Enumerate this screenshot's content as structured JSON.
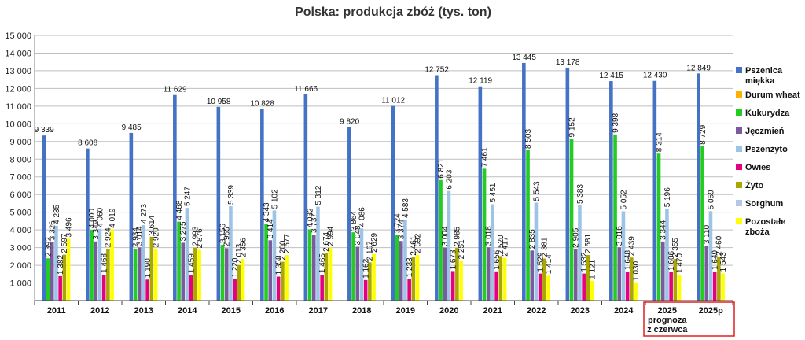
{
  "chart_data": {
    "type": "bar",
    "title": "Polska: produkcja zbóż (tys. ton)",
    "ylim": [
      0,
      15000
    ],
    "yticks": [
      "1 000",
      "2 000",
      "3 000",
      "4 000",
      "5 000",
      "6 000",
      "7 000",
      "8 000",
      "9 000",
      "10 000",
      "11 000",
      "12 000",
      "13 000",
      "14 000",
      "15 000"
    ],
    "ytick_values": [
      1000,
      2000,
      3000,
      4000,
      5000,
      6000,
      7000,
      8000,
      9000,
      10000,
      11000,
      12000,
      13000,
      14000,
      15000
    ],
    "grid": true,
    "legend_position": "right",
    "categories": [
      "2011",
      "2012",
      "2013",
      "2014",
      "2015",
      "2016",
      "2017",
      "2018",
      "2019",
      "2020",
      "2021",
      "2022",
      "2023",
      "2024",
      "2025",
      "2025p"
    ],
    "category_sublabels": {
      "2025": [
        "prognoza",
        "z czerwca"
      ]
    },
    "highlight_box": [
      "2025",
      "2025p"
    ],
    "series": [
      {
        "name": "Pszenica miękka",
        "color": "#4472c4",
        "values": [
          9339,
          8608,
          9485,
          11629,
          10958,
          10828,
          11666,
          9820,
          11012,
          12752,
          12119,
          13445,
          13178,
          12415,
          12430,
          12849
        ],
        "labels": [
          "9 339",
          "8 608",
          "9 485",
          "11 629",
          "10 958",
          "10 828",
          "11 666",
          "9 820",
          "11 012",
          "12 752",
          "12 119",
          "13 445",
          "13 178",
          "12 415",
          "12 430",
          "12 849"
        ]
      },
      {
        "name": "Durum wheat",
        "color": "#ffb000",
        "values": [
          null,
          null,
          null,
          null,
          null,
          null,
          null,
          null,
          null,
          null,
          null,
          null,
          null,
          null,
          null,
          null
        ],
        "labels": [
          null,
          null,
          null,
          null,
          null,
          null,
          null,
          null,
          null,
          null,
          null,
          null,
          null,
          null,
          null,
          null
        ]
      },
      {
        "name": "Kukurydza",
        "color": "#22cc22",
        "values": [
          2392,
          4000,
          2934,
          4468,
          3156,
          4343,
          4032,
          3864,
          3724,
          6821,
          7461,
          8503,
          9152,
          9398,
          8314,
          8729
        ],
        "labels": [
          "2 392",
          "4 000",
          "2 934",
          "4 468",
          "3 156",
          "4 343",
          "4 032",
          "3 864",
          "3 724",
          "6 821",
          "7 461",
          "8 503",
          "9 152",
          "9 398",
          "8 314",
          "8 729"
        ]
      },
      {
        "name": "Jęczmień",
        "color": "#7a5c9e",
        "values": [
          3326,
          3349,
          3014,
          3275,
          2965,
          3414,
          3737,
          3048,
          3374,
          3004,
          3018,
          2835,
          2905,
          3016,
          3344,
          3110
        ],
        "labels": [
          "3 326",
          "3 349",
          "3 014",
          "3 275",
          "2 965",
          "3 414",
          "3 737",
          "3 048",
          "3 374",
          "3 004",
          "3 018",
          "2 835",
          "2 905",
          "3 016",
          "3 344",
          "3 110"
        ]
      },
      {
        "name": "Pszenżyto",
        "color": "#9dc3e6",
        "values": [
          4235,
          4060,
          4273,
          5247,
          5339,
          5102,
          5312,
          4086,
          4583,
          6203,
          5451,
          5543,
          5383,
          5052,
          5196,
          5059
        ],
        "labels": [
          "4 235",
          "4 060",
          "4 273",
          "5 247",
          "5 339",
          "5 102",
          "5 312",
          "4 086",
          "4 583",
          "6 203",
          "5 451",
          "5 543",
          "5 383",
          "5 052",
          "5 196",
          "5 059"
        ]
      },
      {
        "name": "Owies",
        "color": "#e6007e",
        "values": [
          1382,
          1468,
          1190,
          1459,
          1220,
          1358,
          1465,
          1162,
          1233,
          1673,
          1656,
          1529,
          1532,
          1648,
          1606,
          1649
        ],
        "labels": [
          "1 382",
          "1 468",
          "1 190",
          "1 459",
          "1 220",
          "1 358",
          "1 465",
          "1 162",
          "1 233",
          "1 673",
          "1 656",
          "1 529",
          "1 532",
          "1 648",
          "1 606",
          "1 649"
        ]
      },
      {
        "name": "Żyto",
        "color": "#a8a800",
        "values": [
          2597,
          2924,
          3614,
          2993,
          2013,
          2200,
          2674,
          2167,
          2461,
          2985,
          2520,
          2381,
          2581,
          2439,
          2355,
          2460
        ],
        "labels": [
          "2 597",
          "2 924",
          "3 614",
          "2 993",
          "2 013",
          "2 200",
          "2 674",
          "2 167",
          "2 461",
          "2 985",
          "2 520",
          "2 381",
          "2 581",
          "2 439",
          "2 355",
          "2 460"
        ]
      },
      {
        "name": "Sorghum",
        "color": "#b4c7e7",
        "values": [
          null,
          null,
          null,
          null,
          null,
          null,
          null,
          null,
          null,
          null,
          null,
          null,
          null,
          null,
          null,
          null
        ],
        "labels": [
          null,
          null,
          null,
          null,
          null,
          null,
          null,
          null,
          null,
          null,
          null,
          null,
          null,
          null,
          null,
          null
        ]
      },
      {
        "name": "Pozostałe zboża",
        "color": "#ffff00",
        "values": [
          3496,
          4019,
          2920,
          2876,
          2356,
          2577,
          2994,
          2629,
          2592,
          2251,
          2417,
          1414,
          1121,
          1030,
          1470,
          1543
        ],
        "labels": [
          "3 496",
          "4 019",
          "2 920",
          "2 876",
          "2 356",
          "2 577",
          "2 994",
          "2 629",
          "2 592",
          "2 251",
          "2 417",
          "1 414",
          "1 121",
          "1 030",
          "1 470",
          "1 543"
        ]
      }
    ]
  }
}
